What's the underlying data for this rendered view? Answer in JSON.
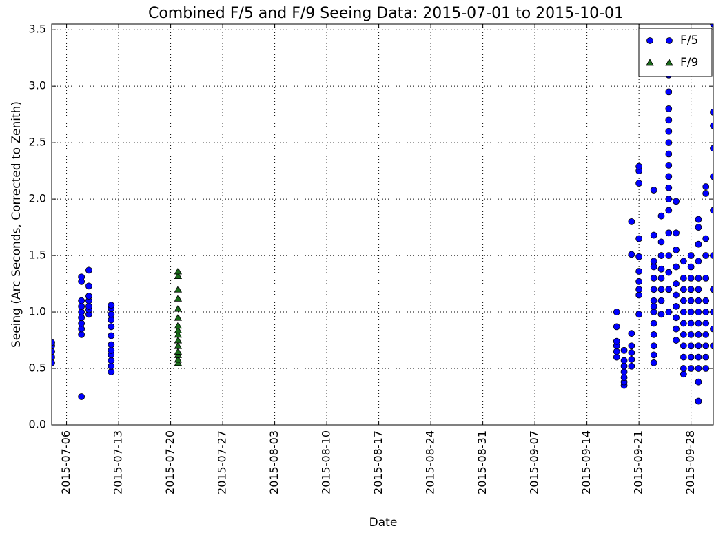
{
  "chart_data": {
    "type": "scatter",
    "title": "Combined F/5 and F/9 Seeing Data: 2015-07-01 to 2015-10-01",
    "x_label": "Date",
    "y_label": "Seeing (Arc Seconds, Corrected to Zenith)",
    "xlim": [
      "2015-07-04",
      "2015-10-01"
    ],
    "ylim": [
      0,
      3.55
    ],
    "xticks": [
      "2015-07-06",
      "2015-07-13",
      "2015-07-20",
      "2015-07-27",
      "2015-08-03",
      "2015-08-10",
      "2015-08-17",
      "2015-08-24",
      "2015-08-31",
      "2015-09-07",
      "2015-09-14",
      "2015-09-21",
      "2015-09-28"
    ],
    "yticks": [
      {
        "value": 0,
        "label": "0.0"
      },
      0.5,
      {
        "value": 1,
        "label": "1.0"
      },
      1.5,
      {
        "value": 2,
        "label": "2.0"
      },
      2.5,
      {
        "value": 3,
        "label": "3.0"
      },
      3.5
    ],
    "grid": true,
    "legend": "upper right",
    "series": [
      {
        "name": "F/5",
        "color": "#0000ff",
        "marker": "circle",
        "x": [
          "2015-07-04",
          "2015-07-04",
          "2015-07-04",
          "2015-07-04",
          "2015-07-04",
          "2015-07-08",
          "2015-07-08",
          "2015-07-08",
          "2015-07-08",
          "2015-07-08",
          "2015-07-08",
          "2015-07-08",
          "2015-07-08",
          "2015-07-08",
          "2015-07-08",
          "2015-07-09",
          "2015-07-09",
          "2015-07-09",
          "2015-07-09",
          "2015-07-09",
          "2015-07-09",
          "2015-07-09",
          "2015-07-12",
          "2015-07-12",
          "2015-07-12",
          "2015-07-12",
          "2015-07-12",
          "2015-07-12",
          "2015-07-12",
          "2015-07-12",
          "2015-07-12",
          "2015-07-12",
          "2015-07-12",
          "2015-07-12",
          "2015-09-18",
          "2015-09-18",
          "2015-09-18",
          "2015-09-18",
          "2015-09-18",
          "2015-09-18",
          "2015-09-19",
          "2015-09-19",
          "2015-09-19",
          "2015-09-19",
          "2015-09-19",
          "2015-09-19",
          "2015-09-19",
          "2015-09-20",
          "2015-09-20",
          "2015-09-20",
          "2015-09-20",
          "2015-09-20",
          "2015-09-20",
          "2015-09-20",
          "2015-09-21",
          "2015-09-21",
          "2015-09-21",
          "2015-09-21",
          "2015-09-21",
          "2015-09-21",
          "2015-09-21",
          "2015-09-21",
          "2015-09-21",
          "2015-09-21",
          "2015-09-23",
          "2015-09-23",
          "2015-09-23",
          "2015-09-23",
          "2015-09-23",
          "2015-09-23",
          "2015-09-23",
          "2015-09-23",
          "2015-09-23",
          "2015-09-23",
          "2015-09-23",
          "2015-09-23",
          "2015-09-23",
          "2015-09-23",
          "2015-09-24",
          "2015-09-24",
          "2015-09-24",
          "2015-09-24",
          "2015-09-24",
          "2015-09-24",
          "2015-09-24",
          "2015-09-24",
          "2015-09-25",
          "2015-09-25",
          "2015-09-25",
          "2015-09-25",
          "2015-09-25",
          "2015-09-25",
          "2015-09-25",
          "2015-09-25",
          "2015-09-25",
          "2015-09-25",
          "2015-09-25",
          "2015-09-25",
          "2015-09-25",
          "2015-09-25",
          "2015-09-25",
          "2015-09-25",
          "2015-09-25",
          "2015-09-26",
          "2015-09-26",
          "2015-09-26",
          "2015-09-26",
          "2015-09-26",
          "2015-09-26",
          "2015-09-26",
          "2015-09-26",
          "2015-09-26",
          "2015-09-26",
          "2015-09-27",
          "2015-09-27",
          "2015-09-27",
          "2015-09-27",
          "2015-09-27",
          "2015-09-27",
          "2015-09-27",
          "2015-09-27",
          "2015-09-27",
          "2015-09-27",
          "2015-09-27",
          "2015-09-28",
          "2015-09-28",
          "2015-09-28",
          "2015-09-28",
          "2015-09-28",
          "2015-09-28",
          "2015-09-28",
          "2015-09-28",
          "2015-09-28",
          "2015-09-28",
          "2015-09-28",
          "2015-09-29",
          "2015-09-29",
          "2015-09-29",
          "2015-09-29",
          "2015-09-29",
          "2015-09-29",
          "2015-09-29",
          "2015-09-29",
          "2015-09-29",
          "2015-09-29",
          "2015-09-29",
          "2015-09-29",
          "2015-09-29",
          "2015-09-29",
          "2015-09-29",
          "2015-09-30",
          "2015-09-30",
          "2015-09-30",
          "2015-09-30",
          "2015-09-30",
          "2015-09-30",
          "2015-09-30",
          "2015-09-30",
          "2015-09-30",
          "2015-09-30",
          "2015-09-30",
          "2015-09-30",
          "2015-10-01",
          "2015-10-01",
          "2015-10-01",
          "2015-10-01",
          "2015-10-01",
          "2015-10-01",
          "2015-10-01",
          "2015-10-01",
          "2015-10-01",
          "2015-10-01",
          "2015-10-01"
        ],
        "values": [
          0.55,
          0.6,
          0.65,
          0.7,
          0.73,
          0.25,
          0.8,
          0.85,
          0.9,
          0.95,
          1.0,
          1.05,
          1.1,
          1.27,
          1.31,
          0.98,
          1.02,
          1.05,
          1.1,
          1.14,
          1.23,
          1.37,
          0.47,
          0.52,
          0.57,
          0.62,
          0.66,
          0.71,
          0.79,
          0.87,
          0.93,
          0.98,
          1.03,
          1.06,
          0.6,
          0.65,
          0.7,
          0.74,
          0.87,
          1.0,
          0.35,
          0.38,
          0.42,
          0.47,
          0.52,
          0.57,
          0.66,
          0.52,
          0.58,
          0.64,
          0.7,
          0.81,
          1.51,
          1.8,
          0.98,
          1.15,
          1.2,
          1.27,
          1.36,
          1.49,
          1.65,
          2.14,
          2.25,
          2.29,
          0.55,
          0.62,
          0.7,
          0.8,
          0.9,
          1.0,
          1.05,
          1.1,
          1.2,
          1.3,
          1.4,
          1.45,
          1.68,
          2.08,
          0.98,
          1.1,
          1.2,
          1.3,
          1.38,
          1.5,
          1.62,
          1.85,
          1.0,
          1.2,
          1.35,
          1.5,
          1.7,
          1.9,
          2.0,
          2.1,
          2.2,
          2.3,
          2.4,
          2.5,
          2.6,
          2.7,
          2.8,
          2.95,
          3.1,
          0.75,
          0.85,
          0.95,
          1.05,
          1.15,
          1.25,
          1.4,
          1.55,
          1.7,
          1.98,
          0.45,
          0.5,
          0.6,
          0.7,
          0.8,
          0.9,
          1.0,
          1.1,
          1.2,
          1.3,
          1.45,
          0.5,
          0.6,
          0.7,
          0.8,
          0.9,
          1.0,
          1.1,
          1.2,
          1.3,
          1.4,
          1.5,
          0.21,
          0.38,
          0.5,
          0.6,
          0.7,
          0.8,
          0.9,
          1.0,
          1.1,
          1.2,
          1.3,
          1.45,
          1.6,
          1.75,
          1.82,
          0.5,
          0.6,
          0.7,
          0.8,
          0.9,
          1.0,
          1.1,
          1.3,
          1.5,
          1.65,
          2.05,
          2.11,
          0.7,
          0.85,
          1.0,
          1.2,
          1.5,
          1.9,
          2.2,
          2.45,
          2.65,
          2.77,
          3.55
        ]
      },
      {
        "name": "F/9",
        "color": "#1a6b1a",
        "marker": "triangle",
        "x": [
          "2015-07-21",
          "2015-07-21",
          "2015-07-21",
          "2015-07-21",
          "2015-07-21",
          "2015-07-21",
          "2015-07-21",
          "2015-07-21",
          "2015-07-21",
          "2015-07-21",
          "2015-07-21",
          "2015-07-21",
          "2015-07-21",
          "2015-07-21",
          "2015-07-21"
        ],
        "values": [
          0.55,
          0.58,
          0.62,
          0.65,
          0.7,
          0.75,
          0.8,
          0.84,
          0.88,
          0.95,
          1.03,
          1.12,
          1.2,
          1.32,
          1.36
        ]
      }
    ]
  }
}
